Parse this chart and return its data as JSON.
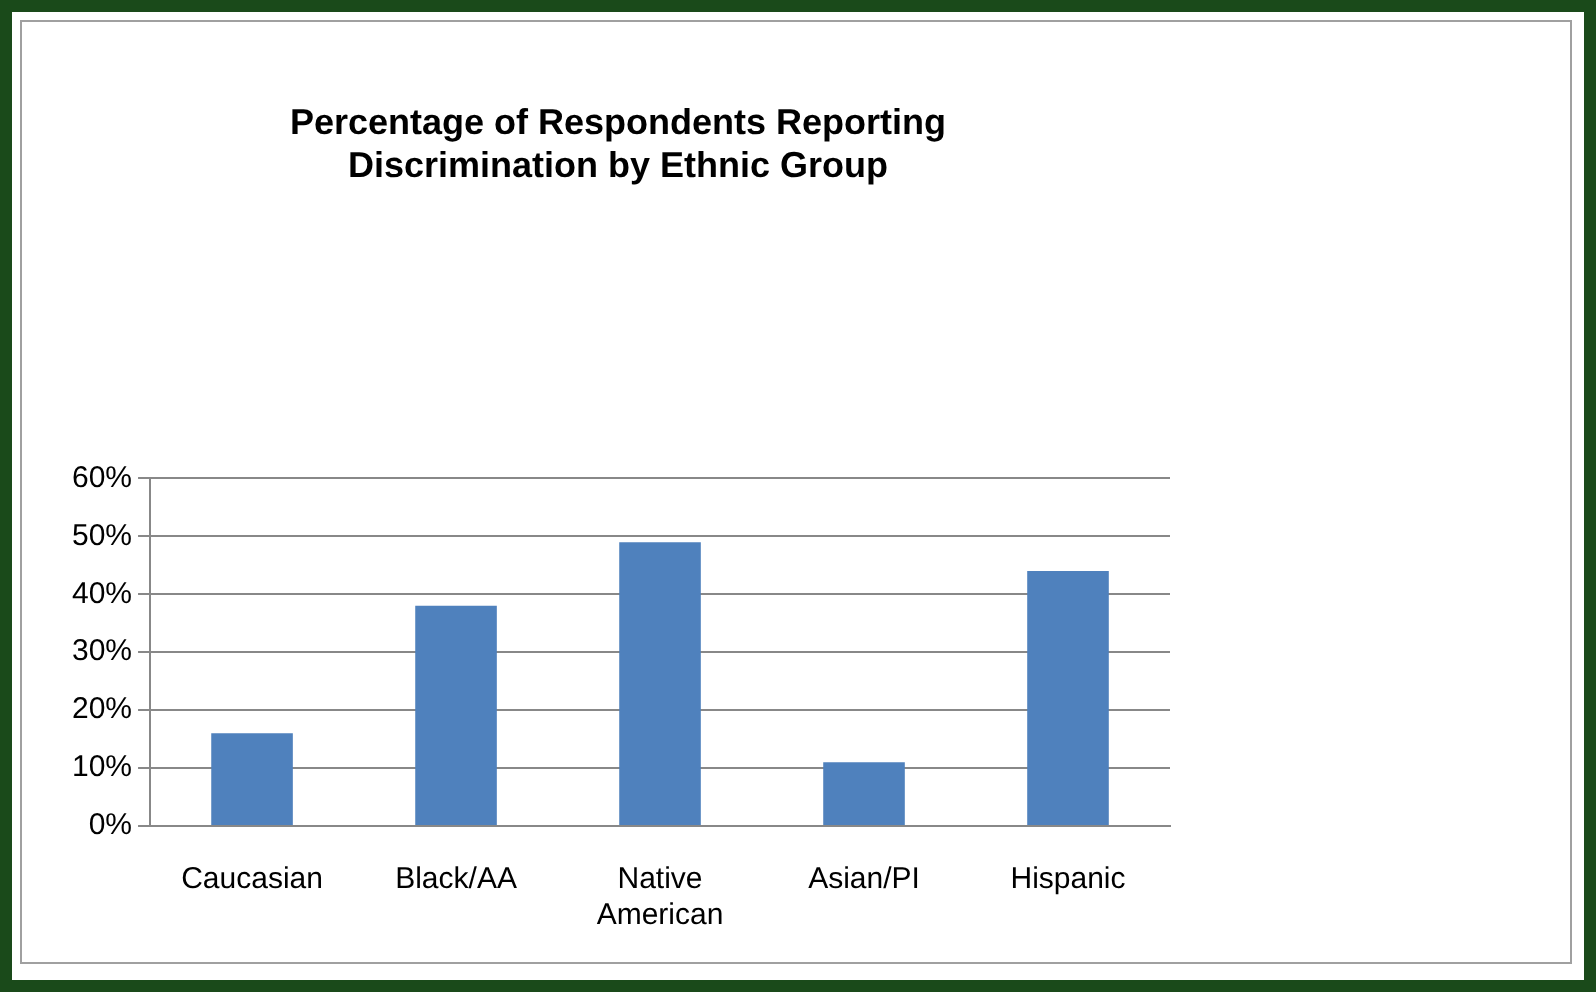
{
  "chart_data": {
    "type": "bar",
    "title": "Percentage of Respondents Reporting Discrimination by Ethnic Group",
    "categories": [
      "Caucasian",
      "Black/AA",
      "Native American",
      "Asian/PI",
      "Hispanic"
    ],
    "values": [
      16,
      38,
      49,
      11,
      44
    ],
    "color": "#4f81bd",
    "ylim": [
      0,
      60
    ],
    "yticks": [
      {
        "value": 0,
        "label": "0%"
      },
      {
        "value": 10,
        "label": "10%"
      },
      {
        "value": 20,
        "label": "20%"
      },
      {
        "value": 30,
        "label": "30%"
      },
      {
        "value": 40,
        "label": "40%"
      },
      {
        "value": 50,
        "label": "50%"
      },
      {
        "value": 60,
        "label": "60%"
      }
    ],
    "grid": "y",
    "legend": false
  }
}
